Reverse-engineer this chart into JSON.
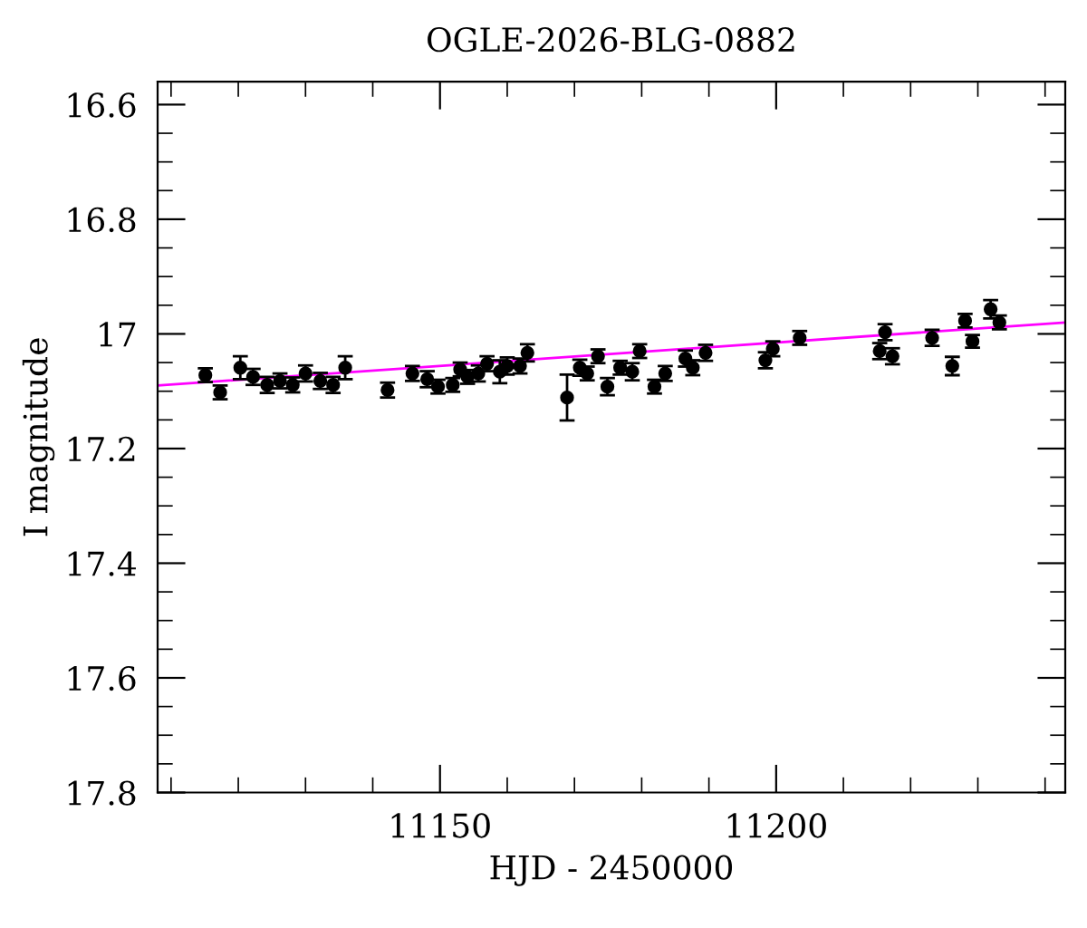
{
  "chart_data": {
    "type": "scatter",
    "title": "OGLE-2026-BLG-0882",
    "xlabel": "HJD - 2450000",
    "ylabel": "I magnitude",
    "xlim": [
      11108,
      11243
    ],
    "ylim": [
      17.8,
      16.56
    ],
    "xticks": [
      {
        "value": 11110,
        "label": null
      },
      {
        "value": 11120,
        "label": null
      },
      {
        "value": 11130,
        "label": null
      },
      {
        "value": 11140,
        "label": null
      },
      11150,
      {
        "value": 11160,
        "label": null
      },
      {
        "value": 11170,
        "label": null
      },
      {
        "value": 11180,
        "label": null
      },
      {
        "value": 11190,
        "label": null
      },
      11200,
      {
        "value": 11210,
        "label": null
      },
      {
        "value": 11220,
        "label": null
      },
      {
        "value": 11230,
        "label": null
      },
      {
        "value": 11240,
        "label": null
      }
    ],
    "yticks": [
      16.6,
      {
        "value": 16.65,
        "label": null
      },
      {
        "value": 16.7,
        "label": null
      },
      {
        "value": 16.75,
        "label": null
      },
      16.8,
      {
        "value": 16.85,
        "label": null
      },
      {
        "value": 16.9,
        "label": null
      },
      {
        "value": 16.95,
        "label": null
      },
      {
        "value": 17,
        "label": "17"
      },
      {
        "value": 17.05,
        "label": null
      },
      {
        "value": 17.1,
        "label": null
      },
      {
        "value": 17.15,
        "label": null
      },
      17.2,
      {
        "value": 17.25,
        "label": null
      },
      {
        "value": 17.3,
        "label": null
      },
      {
        "value": 17.35,
        "label": null
      },
      17.4,
      {
        "value": 17.45,
        "label": null
      },
      {
        "value": 17.5,
        "label": null
      },
      {
        "value": 17.55,
        "label": null
      },
      17.6,
      {
        "value": 17.65,
        "label": null
      },
      {
        "value": 17.7,
        "label": null
      },
      {
        "value": 17.75,
        "label": null
      },
      17.8
    ],
    "grid": false,
    "legend": false,
    "series": [
      {
        "color": "#000000",
        "marker": "circle",
        "x": [
          11115.1,
          11117.3,
          11120.3,
          11122.2,
          11124.3,
          11126.2,
          11128.1,
          11130.0,
          11132.2,
          11134.1,
          11135.9,
          11142.2,
          11145.9,
          11148.1,
          11149.7,
          11151.9,
          11153.0,
          11154.1,
          11155.7,
          11157.0,
          11158.9,
          11160.0,
          11161.9,
          11163.0,
          11168.9,
          11170.8,
          11171.9,
          11173.5,
          11174.9,
          11176.8,
          11178.6,
          11179.7,
          11181.9,
          11183.5,
          11186.5,
          11187.6,
          11189.5,
          11198.4,
          11199.5,
          11203.5,
          11215.4,
          11216.2,
          11217.3,
          11223.2,
          11226.2,
          11228.1,
          11229.2,
          11231.9,
          11233.2
        ],
        "values": [
          17.072,
          17.102,
          17.059,
          17.075,
          17.089,
          17.082,
          17.089,
          17.069,
          17.082,
          17.089,
          17.059,
          17.098,
          17.069,
          17.079,
          17.092,
          17.089,
          17.062,
          17.075,
          17.069,
          17.052,
          17.066,
          17.056,
          17.056,
          17.033,
          17.111,
          17.059,
          17.069,
          17.039,
          17.092,
          17.059,
          17.066,
          17.03,
          17.092,
          17.069,
          17.043,
          17.059,
          17.033,
          17.046,
          17.026,
          17.007,
          17.03,
          16.997,
          17.039,
          17.007,
          17.056,
          16.977,
          17.013,
          16.957,
          16.98
        ],
        "errors": [
          0.012,
          0.012,
          0.02,
          0.014,
          0.014,
          0.013,
          0.013,
          0.014,
          0.014,
          0.014,
          0.02,
          0.013,
          0.013,
          0.014,
          0.012,
          0.012,
          0.012,
          0.012,
          0.014,
          0.013,
          0.02,
          0.015,
          0.013,
          0.015,
          0.04,
          0.014,
          0.012,
          0.012,
          0.015,
          0.012,
          0.015,
          0.012,
          0.012,
          0.013,
          0.014,
          0.013,
          0.014,
          0.014,
          0.013,
          0.012,
          0.014,
          0.014,
          0.014,
          0.014,
          0.016,
          0.012,
          0.011,
          0.016,
          0.012
        ]
      },
      {
        "type": "line",
        "color": "#ff00ff",
        "line_style": "solid",
        "x": [
          11108,
          11243
        ],
        "values": [
          17.09,
          16.98
        ]
      }
    ]
  }
}
